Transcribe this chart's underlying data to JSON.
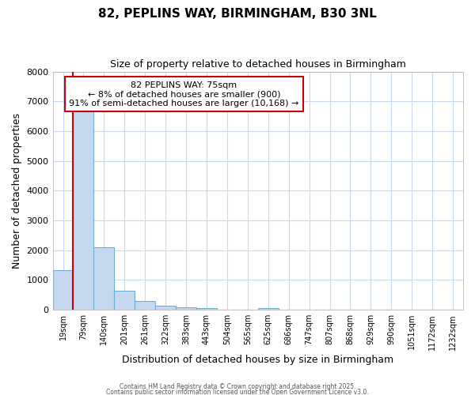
{
  "title": "82, PEPLINS WAY, BIRMINGHAM, B30 3NL",
  "subtitle": "Size of property relative to detached houses in Birmingham",
  "xlabel": "Distribution of detached houses by size in Birmingham",
  "ylabel": "Number of detached properties",
  "categories": [
    "19sqm",
    "79sqm",
    "140sqm",
    "201sqm",
    "261sqm",
    "322sqm",
    "383sqm",
    "443sqm",
    "504sqm",
    "565sqm",
    "625sqm",
    "686sqm",
    "747sqm",
    "807sqm",
    "868sqm",
    "929sqm",
    "990sqm",
    "1051sqm",
    "1172sqm",
    "1232sqm"
  ],
  "values": [
    1320,
    6660,
    2090,
    640,
    300,
    140,
    80,
    70,
    0,
    0,
    70,
    0,
    0,
    0,
    0,
    0,
    0,
    0,
    0,
    0
  ],
  "bar_color": "#c5d8f0",
  "bar_edge_color": "#6baed6",
  "ylim": [
    0,
    8000
  ],
  "yticks": [
    0,
    1000,
    2000,
    3000,
    4000,
    5000,
    6000,
    7000,
    8000
  ],
  "vline_color": "#cc0000",
  "vline_position": 0.5,
  "annotation_text": "82 PEPLINS WAY: 75sqm\n← 8% of detached houses are smaller (900)\n91% of semi-detached houses are larger (10,168) →",
  "annotation_box_color": "#cc0000",
  "bg_color": "#ffffff",
  "grid_color": "#c8d8ee",
  "footer_line1": "Contains HM Land Registry data © Crown copyright and database right 2025.",
  "footer_line2": "Contains public sector information licensed under the Open Government Licence v3.0."
}
